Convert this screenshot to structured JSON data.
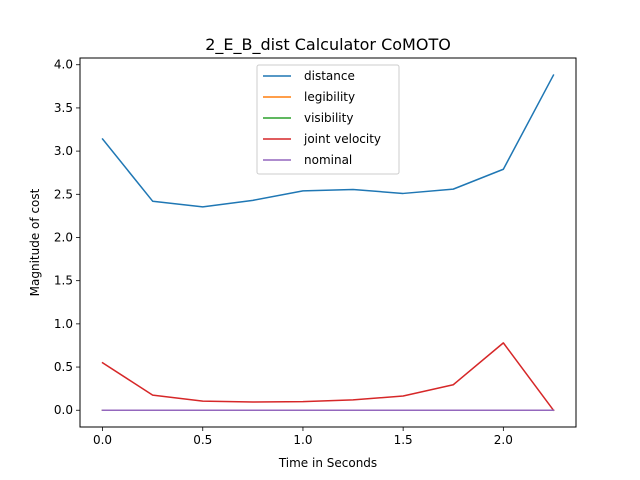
{
  "chart_data": {
    "type": "line",
    "title": "2_E_B_dist Calculator CoMOTO",
    "xlabel": "Time in Seconds",
    "ylabel": "Magnitude of cost",
    "xlim": [
      -0.1125,
      2.3625
    ],
    "ylim": [
      -0.194,
      4.078
    ],
    "xticks": [
      0.0,
      0.5,
      1.0,
      1.5,
      2.0
    ],
    "xtick_labels": [
      "0.0",
      "0.5",
      "1.0",
      "1.5",
      "2.0"
    ],
    "yticks": [
      0.0,
      0.5,
      1.0,
      1.5,
      2.0,
      2.5,
      3.0,
      3.5,
      4.0
    ],
    "ytick_labels": [
      "0.0",
      "0.5",
      "1.0",
      "1.5",
      "2.0",
      "2.5",
      "3.0",
      "3.5",
      "4.0"
    ],
    "grid": false,
    "legend_position": "top-center",
    "x": [
      0.0,
      0.25,
      0.5,
      0.75,
      1.0,
      1.25,
      1.5,
      1.75,
      2.0,
      2.25
    ],
    "series": [
      {
        "name": "distance",
        "color": "#1f77b4",
        "values": [
          3.14,
          2.42,
          2.355,
          2.43,
          2.54,
          2.555,
          2.51,
          2.56,
          2.79,
          3.88
        ]
      },
      {
        "name": "legibility",
        "color": "#ff7f0e",
        "values": [
          0,
          0,
          0,
          0,
          0,
          0,
          0,
          0,
          0,
          0
        ]
      },
      {
        "name": "visibility",
        "color": "#2ca02c",
        "values": [
          0,
          0,
          0,
          0,
          0,
          0,
          0,
          0,
          0,
          0
        ]
      },
      {
        "name": "joint velocity",
        "color": "#d62728",
        "values": [
          0.55,
          0.175,
          0.105,
          0.095,
          0.1,
          0.12,
          0.165,
          0.295,
          0.78,
          0.0
        ]
      },
      {
        "name": "nominal",
        "color": "#9467bd",
        "values": [
          0,
          0,
          0,
          0,
          0,
          0,
          0,
          0,
          0,
          0
        ]
      }
    ]
  }
}
